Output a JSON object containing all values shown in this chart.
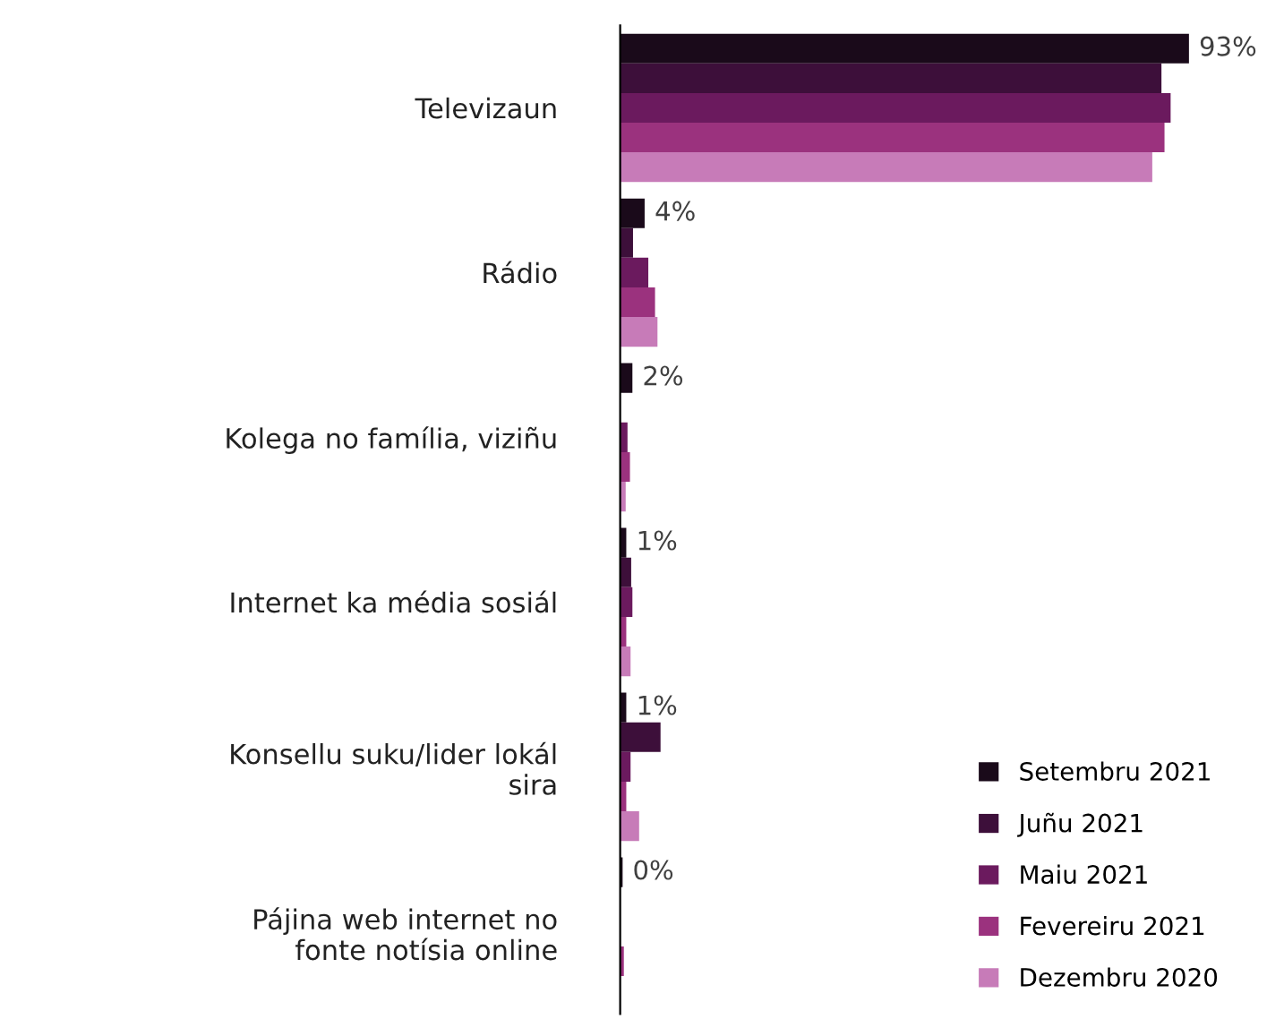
{
  "chart_data": {
    "type": "bar",
    "orientation": "horizontal",
    "categories": [
      "Televizaun",
      "Rádio",
      "Kolega no família, viziñu",
      "Internet ka média sosiál",
      "Konsellu suku/lider lokál sira",
      "Pájina web internet no fonte notísia online"
    ],
    "tick_labels": "y",
    "legend": "bottom right",
    "grid": false,
    "series": [
      {
        "name": "Setembru 2021",
        "color": "#1a0a1a",
        "values": [
          93,
          4,
          2,
          1,
          1,
          0.4
        ],
        "value_labels": [
          "93%",
          "4%",
          "2%",
          "1%",
          "1%",
          "0%"
        ]
      },
      {
        "name": "Juñu 2021",
        "color": "#3d0f3a",
        "values": [
          88.5,
          2.1,
          0,
          1.8,
          6.6,
          0
        ]
      },
      {
        "name": "Maiu 2021",
        "color": "#6b1a5e",
        "values": [
          90,
          4.6,
          1.2,
          2,
          1.7,
          0
        ]
      },
      {
        "name": "Fevereiru 2021",
        "color": "#9b327e",
        "values": [
          89,
          5.7,
          1.6,
          1,
          1,
          0.6
        ]
      },
      {
        "name": "Dezembru 2020",
        "color": "#c77bb8",
        "values": [
          87,
          6.1,
          0.9,
          1.7,
          3.1,
          0
        ]
      }
    ]
  }
}
